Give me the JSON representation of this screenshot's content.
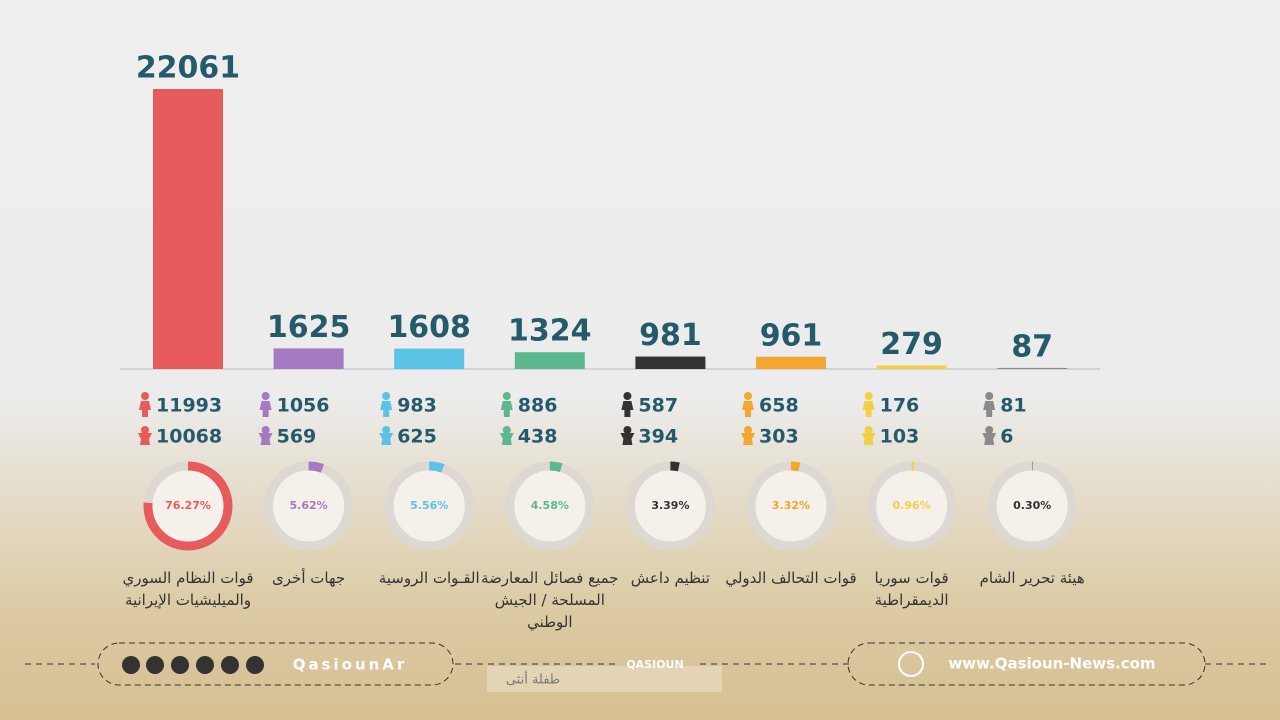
{
  "chart_data": {
    "type": "bar",
    "categories": [
      "قوات النظام السوري والميليشيات الإيرانية",
      "جهات أخرى",
      "القـوات الروسية",
      "جميع فصائل المعارضة المسلحة / الجيش الوطني",
      "تنظيم داعش",
      "قوات التحالف الدولي",
      "قوات سوريا الديمقراطية",
      "هيئة تحرير الشام"
    ],
    "values": [
      22061,
      1625,
      1608,
      1324,
      981,
      961,
      279,
      87
    ],
    "colors": [
      "#e85b5c",
      "#a47bc2",
      "#5cc2e6",
      "#5db890",
      "#333333",
      "#f3a630",
      "#f2d046",
      "#8a8a8a"
    ],
    "women": [
      11993,
      1056,
      983,
      886,
      587,
      658,
      176,
      81
    ],
    "girls": [
      10068,
      569,
      625,
      438,
      394,
      303,
      103,
      6
    ],
    "shares": [
      76.27,
      5.62,
      5.56,
      4.58,
      3.39,
      3.32,
      0.96,
      0.3
    ],
    "share_labels": [
      "76.27%",
      "5.62%",
      "5.56%",
      "4.58%",
      "3.39%",
      "3.32%",
      "0.96%",
      "0.30%"
    ]
  },
  "footer": {
    "handle": "QasiounAr",
    "website": "www.Qasioun-News.com",
    "legend": "طفلة أنثى",
    "logo": "QASIOUN"
  }
}
